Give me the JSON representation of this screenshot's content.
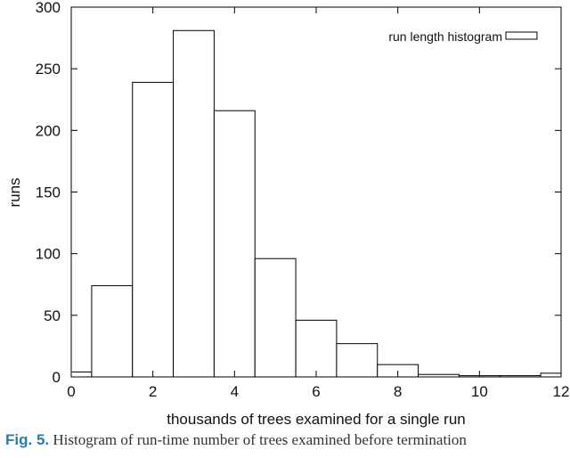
{
  "chart_data": {
    "type": "bar",
    "xlabel": "thousands of trees examined for a single run",
    "ylabel": "runs",
    "xlim": [
      0,
      12
    ],
    "ylim": [
      0,
      300
    ],
    "x_ticks": [
      "0",
      "2",
      "4",
      "6",
      "8",
      "10",
      "12"
    ],
    "y_ticks": [
      "0",
      "50",
      "100",
      "150",
      "200",
      "250",
      "300"
    ],
    "grid": false,
    "legend_position": "top-right",
    "series": [
      {
        "name": "run length histogram",
        "bins": [
          {
            "x0": 0.0,
            "x1": 0.5,
            "value": 4
          },
          {
            "x0": 0.5,
            "x1": 1.5,
            "value": 74
          },
          {
            "x0": 1.5,
            "x1": 2.5,
            "value": 239
          },
          {
            "x0": 2.5,
            "x1": 3.5,
            "value": 281
          },
          {
            "x0": 3.5,
            "x1": 4.5,
            "value": 216
          },
          {
            "x0": 4.5,
            "x1": 5.5,
            "value": 96
          },
          {
            "x0": 5.5,
            "x1": 6.5,
            "value": 46
          },
          {
            "x0": 6.5,
            "x1": 7.5,
            "value": 27
          },
          {
            "x0": 7.5,
            "x1": 8.5,
            "value": 10
          },
          {
            "x0": 8.5,
            "x1": 9.5,
            "value": 2
          },
          {
            "x0": 9.5,
            "x1": 10.5,
            "value": 1
          },
          {
            "x0": 10.5,
            "x1": 11.5,
            "value": 1
          },
          {
            "x0": 11.5,
            "x1": 12.0,
            "value": 3
          }
        ]
      }
    ],
    "colors": {
      "bar_fill": "#ffffff",
      "bar_stroke": "#000000"
    }
  },
  "caption": {
    "label": "Fig. 5.",
    "text": " Histogram of run-time number of trees examined before termination"
  }
}
